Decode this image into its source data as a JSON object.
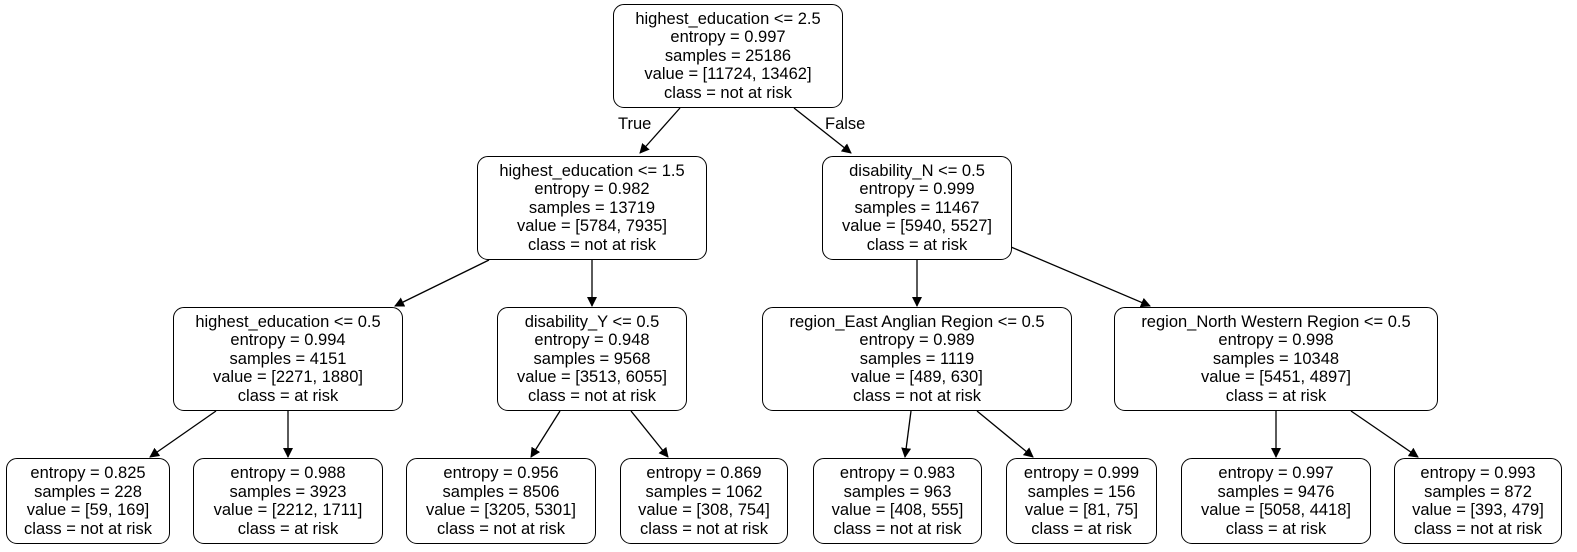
{
  "tree": {
    "edge_labels": {
      "true_label": "True",
      "false_label": "False"
    },
    "nodes": {
      "root": {
        "split": "highest_education <= 2.5",
        "entropy": "entropy = 0.997",
        "samples": "samples = 25186",
        "value": "value = [11724, 13462]",
        "class": "class = not at risk"
      },
      "l": {
        "split": "highest_education <= 1.5",
        "entropy": "entropy = 0.982",
        "samples": "samples = 13719",
        "value": "value = [5784, 7935]",
        "class": "class = not at risk"
      },
      "r": {
        "split": "disability_N <= 0.5",
        "entropy": "entropy = 0.999",
        "samples": "samples = 11467",
        "value": "value = [5940, 5527]",
        "class": "class = at risk"
      },
      "ll": {
        "split": "highest_education <= 0.5",
        "entropy": "entropy = 0.994",
        "samples": "samples = 4151",
        "value": "value = [2271, 1880]",
        "class": "class = at risk"
      },
      "lr": {
        "split": "disability_Y <= 0.5",
        "entropy": "entropy = 0.948",
        "samples": "samples = 9568",
        "value": "value = [3513, 6055]",
        "class": "class = not at risk"
      },
      "rl": {
        "split": "region_East Anglian Region <= 0.5",
        "entropy": "entropy = 0.989",
        "samples": "samples = 1119",
        "value": "value = [489, 630]",
        "class": "class = not at risk"
      },
      "rr": {
        "split": "region_North Western Region <= 0.5",
        "entropy": "entropy = 0.998",
        "samples": "samples = 10348",
        "value": "value = [5451, 4897]",
        "class": "class = at risk"
      },
      "lll": {
        "entropy": "entropy = 0.825",
        "samples": "samples = 228",
        "value": "value = [59, 169]",
        "class": "class = not at risk"
      },
      "llr": {
        "entropy": "entropy = 0.988",
        "samples": "samples = 3923",
        "value": "value = [2212, 1711]",
        "class": "class = at risk"
      },
      "lrl": {
        "entropy": "entropy = 0.956",
        "samples": "samples = 8506",
        "value": "value = [3205, 5301]",
        "class": "class = not at risk"
      },
      "lrr": {
        "entropy": "entropy = 0.869",
        "samples": "samples = 1062",
        "value": "value = [308, 754]",
        "class": "class = not at risk"
      },
      "rll": {
        "entropy": "entropy = 0.983",
        "samples": "samples = 963",
        "value": "value = [408, 555]",
        "class": "class = not at risk"
      },
      "rlr": {
        "entropy": "entropy = 0.999",
        "samples": "samples = 156",
        "value": "value = [81, 75]",
        "class": "class = at risk"
      },
      "rrl": {
        "entropy": "entropy = 0.997",
        "samples": "samples = 9476",
        "value": "value = [5058, 4418]",
        "class": "class = at risk"
      },
      "rrr": {
        "entropy": "entropy = 0.993",
        "samples": "samples = 872",
        "value": "value = [393, 479]",
        "class": "class = not at risk"
      }
    }
  }
}
